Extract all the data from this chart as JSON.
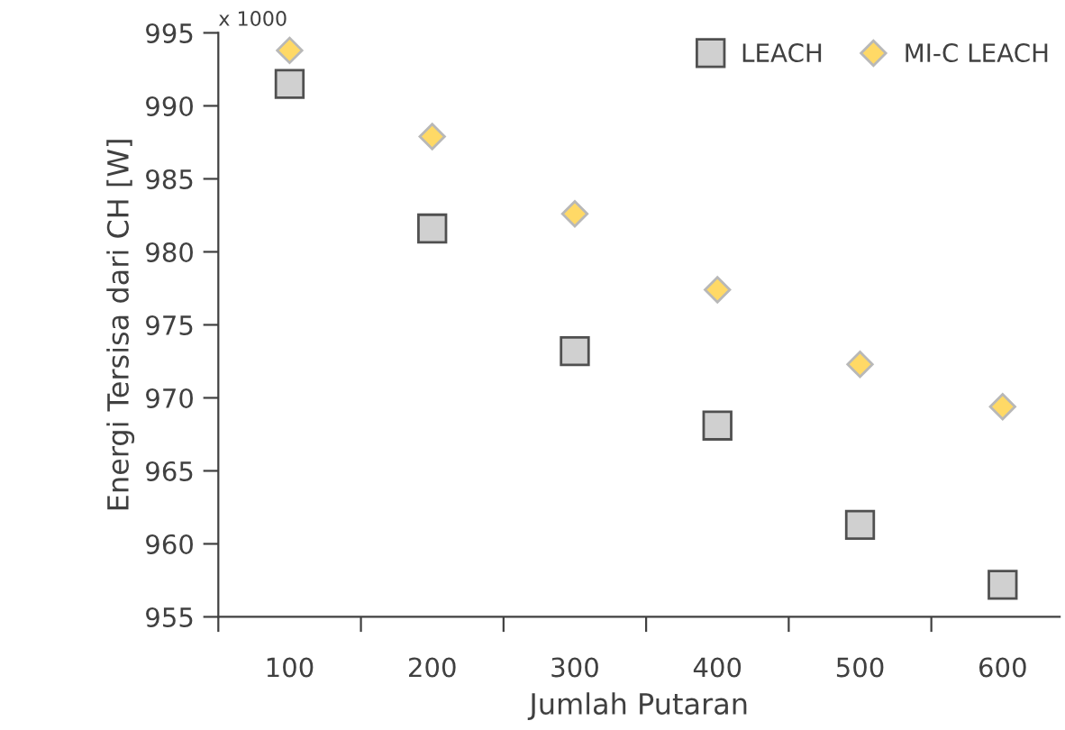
{
  "chart_data": {
    "type": "scatter",
    "xlabel": "Jumlah Putaran",
    "ylabel": "Energi Tersisa dari CH [W]",
    "annotations": [
      "x 1000"
    ],
    "x": [
      100,
      200,
      300,
      400,
      500,
      600
    ],
    "series": [
      {
        "name": "LEACH",
        "color": "#d0d0d0",
        "marker": "square",
        "values": [
          991.5,
          981.6,
          973.2,
          968.1,
          961.3,
          957.2
        ]
      },
      {
        "name": "MI-C LEACH",
        "color": "#ffd966",
        "marker": "diamond",
        "values": [
          993.8,
          987.9,
          982.6,
          977.4,
          972.3,
          969.4
        ]
      }
    ],
    "xlim": [
      50,
      640
    ],
    "xticks": [
      {
        "value": 50,
        "label": null
      },
      100,
      {
        "value": 150,
        "label": null
      },
      200,
      {
        "value": 250,
        "label": null
      },
      300,
      {
        "value": 350,
        "label": null
      },
      400,
      {
        "value": 450,
        "label": null
      },
      500,
      {
        "value": 550,
        "label": null
      },
      600
    ],
    "ylim": [
      955,
      995
    ],
    "yticks": [
      955,
      960,
      965,
      970,
      975,
      980,
      985,
      990,
      995
    ],
    "grid": false,
    "legend": "top right"
  }
}
